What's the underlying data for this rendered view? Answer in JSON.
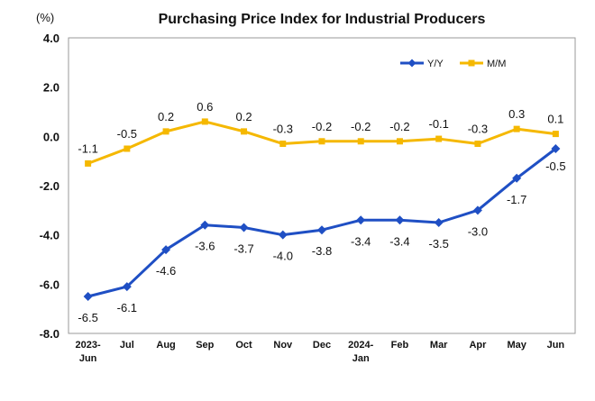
{
  "chart_data": {
    "type": "line",
    "title": "Purchasing Price Index for Industrial Producers",
    "ylabel": "(%)",
    "xlabel": "",
    "categories": [
      [
        "2023-",
        "Jun"
      ],
      [
        "Jul"
      ],
      [
        "Aug"
      ],
      [
        "Sep"
      ],
      [
        "Oct"
      ],
      [
        "Nov"
      ],
      [
        "Dec"
      ],
      [
        "2024-",
        "Jan"
      ],
      [
        "Feb"
      ],
      [
        "Mar"
      ],
      [
        "Apr"
      ],
      [
        "May"
      ],
      [
        "Jun"
      ]
    ],
    "ylim": [
      -8.0,
      4.0
    ],
    "yticks": [
      "4.0",
      "2.0",
      "0.0",
      "-2.0",
      "-4.0",
      "-6.0",
      "-8.0"
    ],
    "ytick_values": [
      4,
      2,
      0,
      -2,
      -4,
      -6,
      -8
    ],
    "grid": false,
    "legend_position": "top-right",
    "series": [
      {
        "name": "Y/Y",
        "color": "#1f4fc4",
        "marker": "diamond",
        "label_position": "below",
        "values": [
          -6.5,
          -6.1,
          -4.6,
          -3.6,
          -3.7,
          -4.0,
          -3.8,
          -3.4,
          -3.4,
          -3.5,
          -3.0,
          -1.7,
          -0.5
        ],
        "labels": [
          "-6.5",
          "-6.1",
          "-4.6",
          "-3.6",
          "-3.7",
          "-4.0",
          "-3.8",
          "-3.4",
          "-3.4",
          "-3.5",
          "-3.0",
          "-1.7",
          "-0.5"
        ]
      },
      {
        "name": "M/M",
        "color": "#f5b800",
        "marker": "square",
        "label_position": "above",
        "values": [
          -1.1,
          -0.5,
          0.2,
          0.6,
          0.2,
          -0.3,
          -0.2,
          -0.2,
          -0.2,
          -0.1,
          -0.3,
          0.3,
          0.1
        ],
        "labels": [
          "-1.1",
          "-0.5",
          "0.2",
          "0.6",
          "0.2",
          "-0.3",
          "-0.2",
          "-0.2",
          "-0.2",
          "-0.1",
          "-0.3",
          "0.3",
          "0.1"
        ]
      }
    ]
  }
}
